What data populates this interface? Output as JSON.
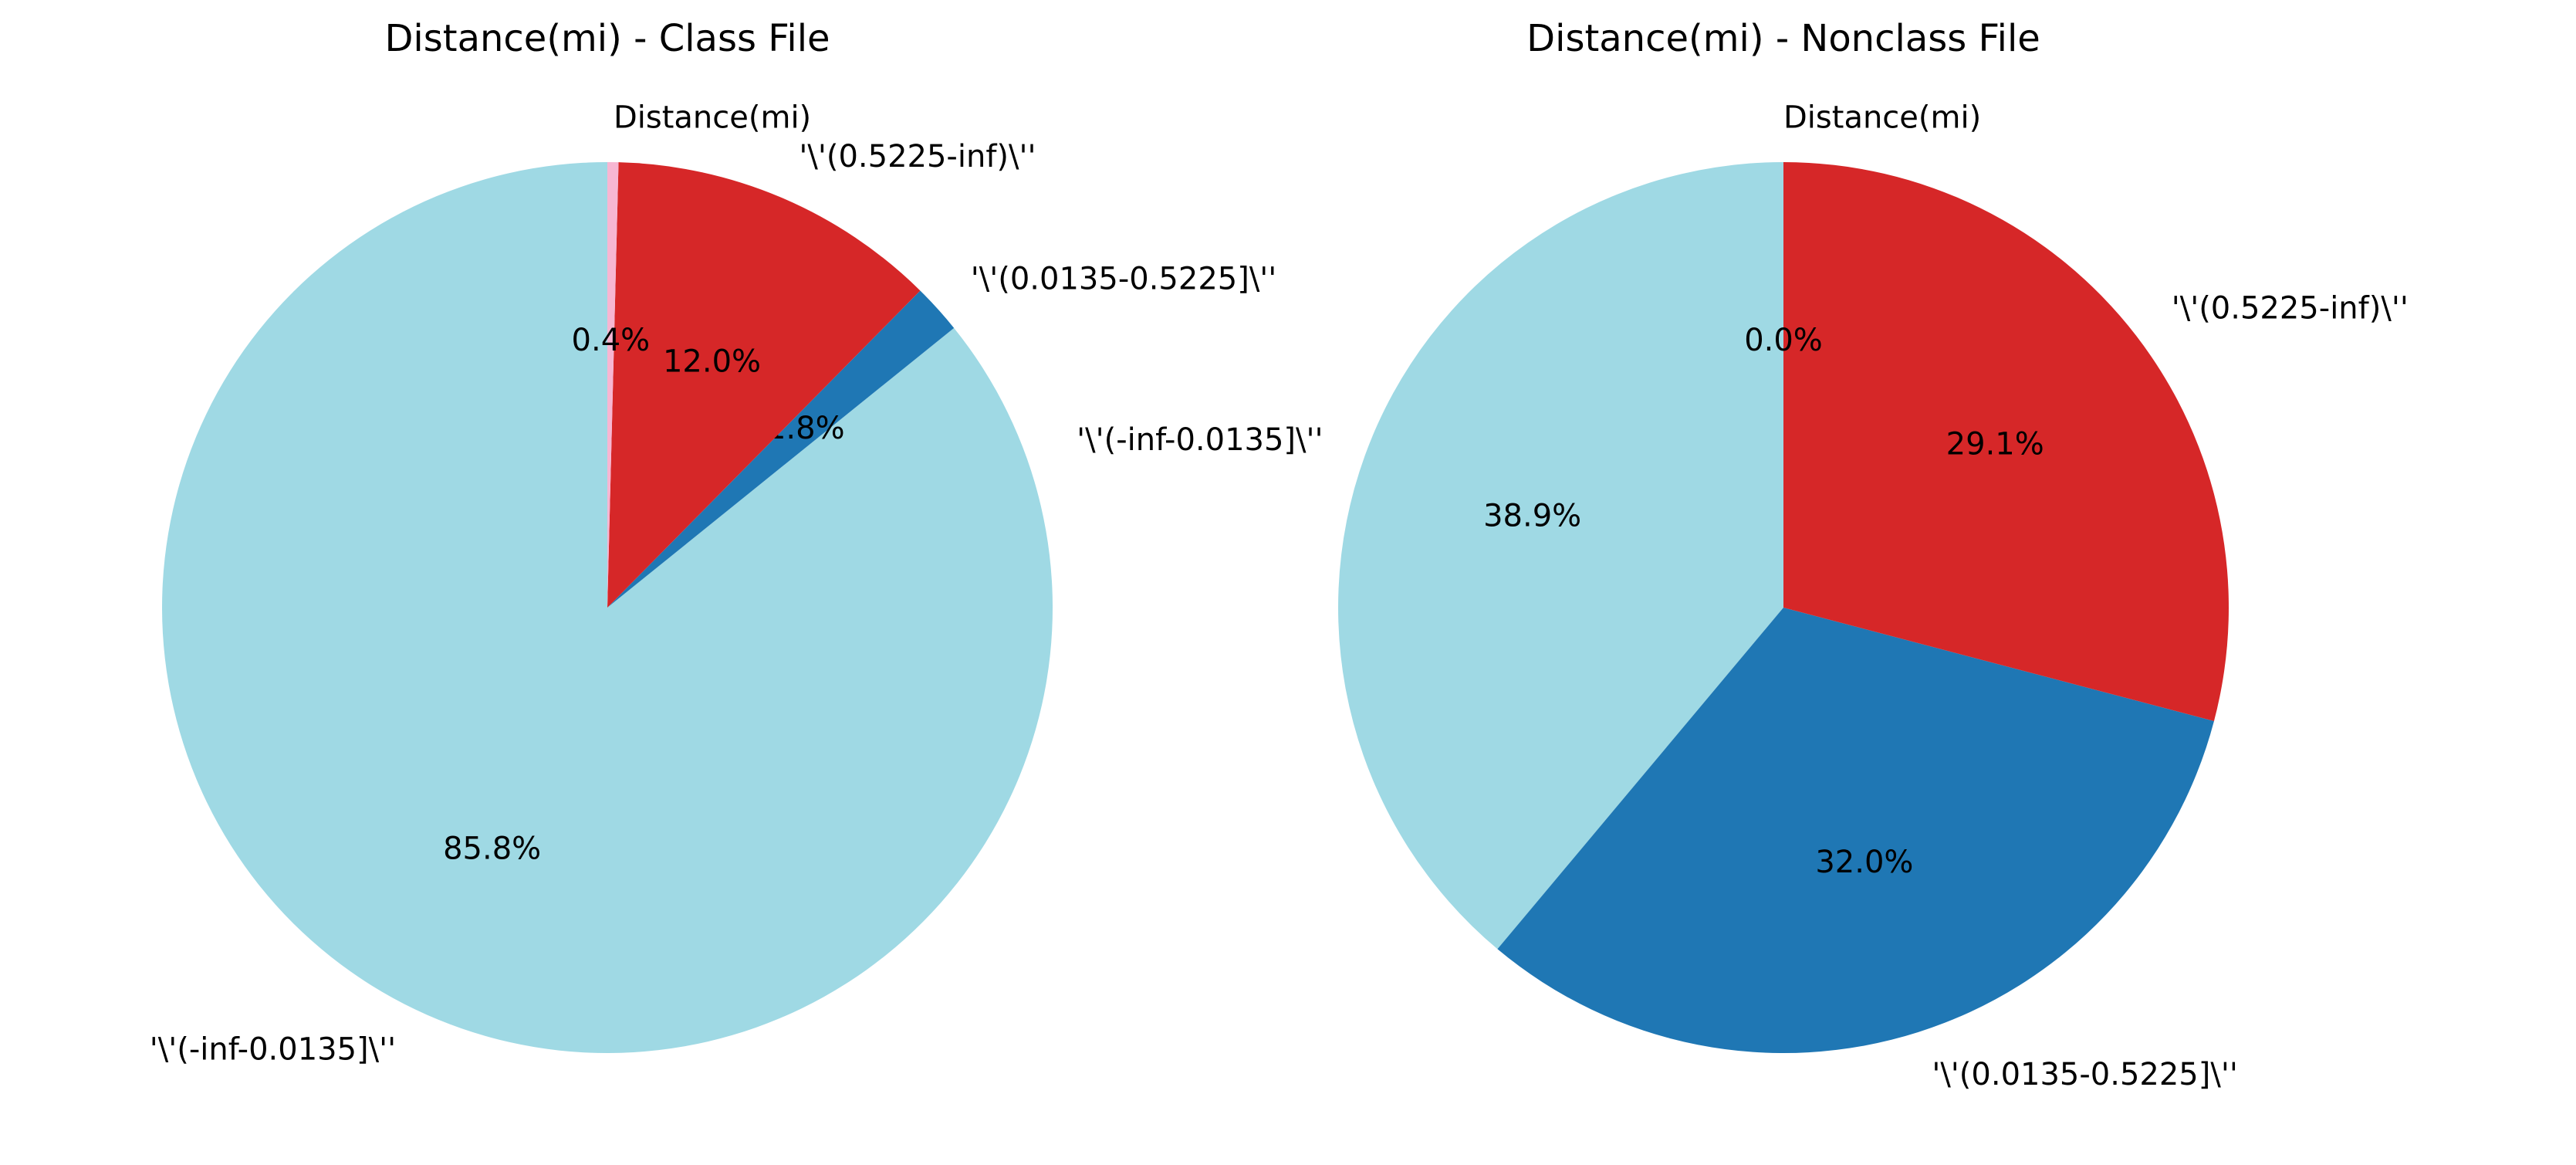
{
  "chart_data": [
    {
      "type": "pie",
      "title": "Distance(mi) - Class File",
      "slices": [
        {
          "label": "'\\'(-inf-0.0135]\\''",
          "value": 85.8,
          "pct_label": "85.8%",
          "color": "#9fd9e4"
        },
        {
          "label": "'\\'(0.0135-0.5225]\\''",
          "value": 1.8,
          "pct_label": "1.8%",
          "color": "#1f77b4"
        },
        {
          "label": "'\\'(0.5225-inf)\\''",
          "value": 12.0,
          "pct_label": "12.0%",
          "color": "#d62728"
        },
        {
          "label": "Distance(mi)",
          "value": 0.4,
          "pct_label": "0.4%",
          "color": "#f7b6d2"
        }
      ]
    },
    {
      "type": "pie",
      "title": "Distance(mi) - Nonclass File",
      "slices": [
        {
          "label": "'\\'(-inf-0.0135]\\''",
          "value": 38.9,
          "pct_label": "38.9%",
          "color": "#9fd9e4"
        },
        {
          "label": "'\\'(0.0135-0.5225]\\''",
          "value": 32.0,
          "pct_label": "32.0%",
          "color": "#1f77b4"
        },
        {
          "label": "'\\'(0.5225-inf)\\''",
          "value": 29.1,
          "pct_label": "29.1%",
          "color": "#d62728"
        },
        {
          "label": "Distance(mi)",
          "value": 0.0,
          "pct_label": "0.0%",
          "color": "#f7b6d2"
        }
      ]
    }
  ]
}
